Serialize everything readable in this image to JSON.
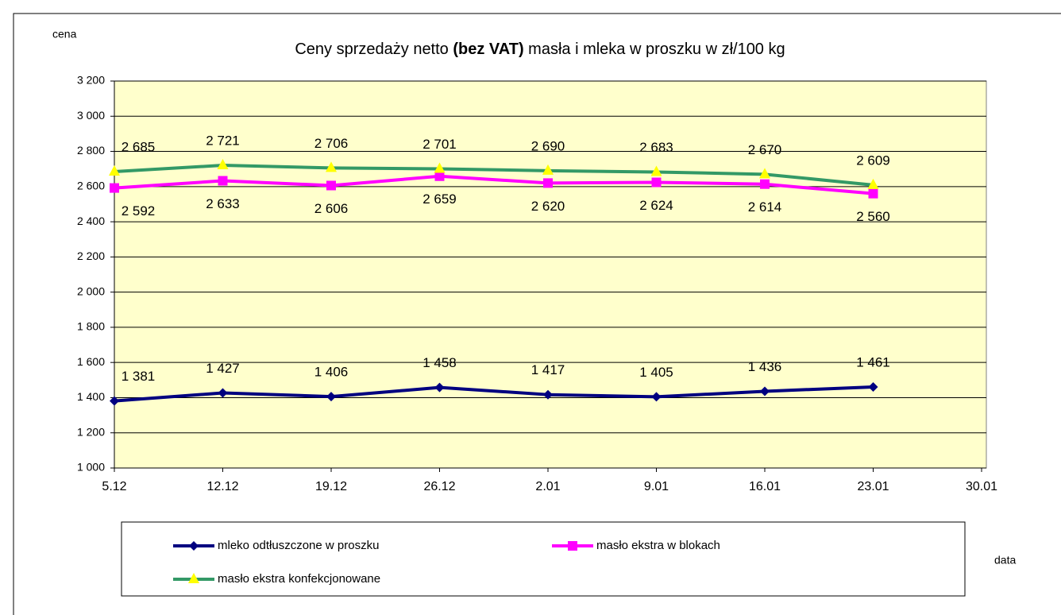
{
  "chart_data": {
    "type": "line",
    "title_parts": [
      "Ceny sprzedaży netto ",
      "(bez VAT)",
      " masła i mleka w proszku w zł/100 kg"
    ],
    "y_label": "cena",
    "x_label": "data",
    "categories": [
      "5.12",
      "12.12",
      "19.12",
      "26.12",
      "2.01",
      "9.01",
      "16.01",
      "23.01",
      "30.01"
    ],
    "series": [
      {
        "name": "mleko odtłuszczone w proszku",
        "color": "#000080",
        "marker": "diamond",
        "label_side": "above",
        "values": [
          1381,
          1427,
          1406,
          1458,
          1417,
          1405,
          1436,
          1461,
          null
        ],
        "value_labels": [
          "1 381",
          "1 427",
          "1 406",
          "1 458",
          "1 417",
          "1 405",
          "1 436",
          "1 461",
          null
        ]
      },
      {
        "name": "masło ekstra w blokach",
        "color": "#ff00ff",
        "marker": "square",
        "label_side": "below",
        "values": [
          2592,
          2633,
          2606,
          2659,
          2620,
          2624,
          2614,
          2560,
          null
        ],
        "value_labels": [
          "2 592",
          "2 633",
          "2 606",
          "2 659",
          "2 620",
          "2 624",
          "2 614",
          "2 560",
          null
        ]
      },
      {
        "name": "masło ekstra konfekcjonowane",
        "color": "#339966",
        "marker_color": "#ffff00",
        "marker": "triangle",
        "label_side": "above",
        "values": [
          2685,
          2721,
          2706,
          2701,
          2690,
          2683,
          2670,
          2609,
          null
        ],
        "value_labels": [
          "2 685",
          "2 721",
          "2 706",
          "2 701",
          "2 690",
          "2 683",
          "2 670",
          "2 609",
          null
        ]
      }
    ],
    "ylim": [
      1000,
      3200
    ],
    "yticks": [
      {
        "value": 1000,
        "label": "1 000"
      },
      {
        "value": 1200,
        "label": "1 200"
      },
      {
        "value": 1400,
        "label": "1 400"
      },
      {
        "value": 1600,
        "label": "1 600"
      },
      {
        "value": 1800,
        "label": "1 800"
      },
      {
        "value": 2000,
        "label": "2 000"
      },
      {
        "value": 2200,
        "label": "2 200"
      },
      {
        "value": 2400,
        "label": "2 400"
      },
      {
        "value": 2600,
        "label": "2 600"
      },
      {
        "value": 2800,
        "label": "2 800"
      },
      {
        "value": 3000,
        "label": "3 000"
      },
      {
        "value": 3200,
        "label": "3 200"
      }
    ],
    "grid": true,
    "plot_background": "#ffffcc"
  }
}
